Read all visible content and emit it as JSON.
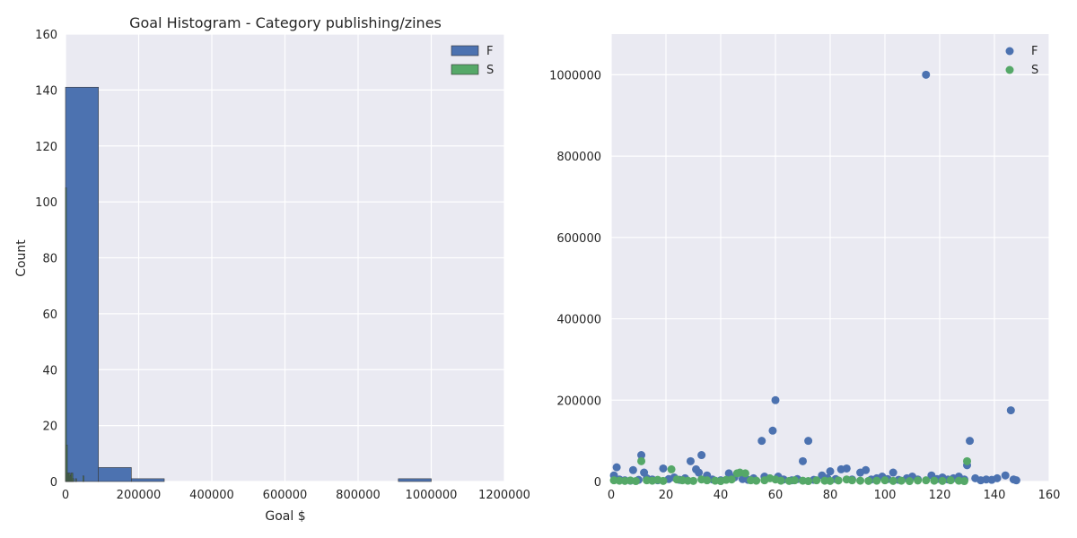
{
  "colors": {
    "background": "#eaeaf2",
    "grid": "#ffffff",
    "F": "#4c72b0",
    "S": "#55a868"
  },
  "chart_data": [
    {
      "type": "histogram",
      "title": "Goal Histogram - Category publishing/zines",
      "xlabel": "Goal $",
      "ylabel": "Count",
      "xlim": [
        0,
        1200000
      ],
      "ylim": [
        0,
        160
      ],
      "xticks": [
        "0",
        "200000",
        "400000",
        "600000",
        "800000",
        "1000000",
        "1200000"
      ],
      "yticks": [
        "0",
        "20",
        "40",
        "60",
        "80",
        "100",
        "120",
        "140",
        "160"
      ],
      "grid": true,
      "legend_position": "top-right",
      "series": [
        {
          "name": "F",
          "bins": [
            {
              "x0": 0,
              "x1": 90000,
              "count": 141
            },
            {
              "x0": 90000,
              "x1": 180000,
              "count": 5
            },
            {
              "x0": 180000,
              "x1": 270000,
              "count": 1
            },
            {
              "x0": 910000,
              "x1": 1000000,
              "count": 1
            }
          ]
        },
        {
          "name": "S",
          "bins": [
            {
              "x0": 0,
              "x1": 2500,
              "count": 105
            },
            {
              "x0": 2500,
              "x1": 5000,
              "count": 13
            },
            {
              "x0": 5000,
              "x1": 7500,
              "count": 3
            },
            {
              "x0": 7500,
              "x1": 10000,
              "count": 3
            },
            {
              "x0": 10000,
              "x1": 12500,
              "count": 3
            },
            {
              "x0": 12500,
              "x1": 15000,
              "count": 2
            },
            {
              "x0": 15000,
              "x1": 17500,
              "count": 3
            },
            {
              "x0": 17500,
              "x1": 20000,
              "count": 3
            },
            {
              "x0": 20000,
              "x1": 22500,
              "count": 1
            },
            {
              "x0": 27500,
              "x1": 30000,
              "count": 1
            },
            {
              "x0": 47500,
              "x1": 50000,
              "count": 2
            }
          ]
        }
      ]
    },
    {
      "type": "scatter",
      "xlim": [
        0,
        160
      ],
      "ylim": [
        0,
        1100000
      ],
      "xticks": [
        "0",
        "20",
        "40",
        "60",
        "80",
        "100",
        "120",
        "140",
        "160"
      ],
      "yticks": [
        "0",
        "200000",
        "400000",
        "600000",
        "800000",
        "1000000"
      ],
      "grid": true,
      "legend_position": "top-right",
      "series": [
        {
          "name": "F",
          "points": [
            [
              1,
              15000
            ],
            [
              2,
              35000
            ],
            [
              3,
              5000
            ],
            [
              5,
              3000
            ],
            [
              7,
              2000
            ],
            [
              8,
              28000
            ],
            [
              10,
              4000
            ],
            [
              11,
              65000
            ],
            [
              12,
              22000
            ],
            [
              13,
              8000
            ],
            [
              15,
              5000
            ],
            [
              17,
              3000
            ],
            [
              19,
              32000
            ],
            [
              21,
              6000
            ],
            [
              23,
              10000
            ],
            [
              25,
              4000
            ],
            [
              27,
              8000
            ],
            [
              29,
              50000
            ],
            [
              31,
              30000
            ],
            [
              32,
              22000
            ],
            [
              33,
              65000
            ],
            [
              35,
              15000
            ],
            [
              37,
              5000
            ],
            [
              40,
              3000
            ],
            [
              43,
              20000
            ],
            [
              45,
              10000
            ],
            [
              48,
              6000
            ],
            [
              50,
              4000
            ],
            [
              52,
              8000
            ],
            [
              55,
              100000
            ],
            [
              56,
              12000
            ],
            [
              59,
              125000
            ],
            [
              60,
              200000
            ],
            [
              61,
              12000
            ],
            [
              63,
              5000
            ],
            [
              66,
              3000
            ],
            [
              68,
              6000
            ],
            [
              70,
              50000
            ],
            [
              72,
              100000
            ],
            [
              74,
              4000
            ],
            [
              77,
              15000
            ],
            [
              79,
              8000
            ],
            [
              80,
              25000
            ],
            [
              82,
              6000
            ],
            [
              84,
              30000
            ],
            [
              86,
              32000
            ],
            [
              88,
              5000
            ],
            [
              91,
              22000
            ],
            [
              93,
              28000
            ],
            [
              95,
              5000
            ],
            [
              97,
              8000
            ],
            [
              99,
              12000
            ],
            [
              101,
              6000
            ],
            [
              103,
              22000
            ],
            [
              105,
              4000
            ],
            [
              108,
              8000
            ],
            [
              110,
              12000
            ],
            [
              112,
              5000
            ],
            [
              115,
              1000000
            ],
            [
              117,
              15000
            ],
            [
              119,
              6000
            ],
            [
              121,
              10000
            ],
            [
              123,
              5000
            ],
            [
              125,
              8000
            ],
            [
              127,
              12000
            ],
            [
              129,
              5000
            ],
            [
              130,
              40000
            ],
            [
              131,
              100000
            ],
            [
              133,
              8000
            ],
            [
              135,
              3000
            ],
            [
              137,
              5000
            ],
            [
              139,
              4000
            ],
            [
              141,
              8000
            ],
            [
              144,
              15000
            ],
            [
              146,
              175000
            ],
            [
              147,
              5000
            ],
            [
              148,
              3000
            ]
          ]
        },
        {
          "name": "S",
          "points": [
            [
              1,
              3000
            ],
            [
              3,
              2000
            ],
            [
              5,
              1500
            ],
            [
              7,
              2500
            ],
            [
              9,
              1000
            ],
            [
              11,
              50000
            ],
            [
              13,
              3000
            ],
            [
              15,
              2000
            ],
            [
              17,
              4000
            ],
            [
              19,
              1500
            ],
            [
              22,
              30000
            ],
            [
              24,
              5000
            ],
            [
              26,
              3000
            ],
            [
              28,
              2000
            ],
            [
              30,
              1500
            ],
            [
              33,
              5000
            ],
            [
              35,
              3000
            ],
            [
              38,
              2000
            ],
            [
              40,
              1000
            ],
            [
              42,
              4000
            ],
            [
              44,
              5000
            ],
            [
              46,
              20000
            ],
            [
              47,
              22000
            ],
            [
              49,
              20000
            ],
            [
              51,
              3000
            ],
            [
              53,
              2000
            ],
            [
              56,
              3000
            ],
            [
              58,
              8000
            ],
            [
              60,
              5000
            ],
            [
              62,
              2000
            ],
            [
              65,
              1500
            ],
            [
              67,
              3000
            ],
            [
              70,
              2000
            ],
            [
              72,
              1000
            ],
            [
              75,
              3000
            ],
            [
              78,
              2000
            ],
            [
              80,
              1500
            ],
            [
              83,
              2500
            ],
            [
              86,
              5000
            ],
            [
              88,
              3000
            ],
            [
              91,
              2000
            ],
            [
              94,
              1500
            ],
            [
              97,
              2000
            ],
            [
              100,
              3000
            ],
            [
              103,
              1500
            ],
            [
              106,
              2000
            ],
            [
              109,
              1000
            ],
            [
              112,
              2500
            ],
            [
              115,
              3000
            ],
            [
              118,
              2000
            ],
            [
              121,
              1500
            ],
            [
              124,
              3000
            ],
            [
              127,
              2000
            ],
            [
              129,
              1000
            ],
            [
              130,
              50000
            ]
          ]
        }
      ]
    }
  ]
}
